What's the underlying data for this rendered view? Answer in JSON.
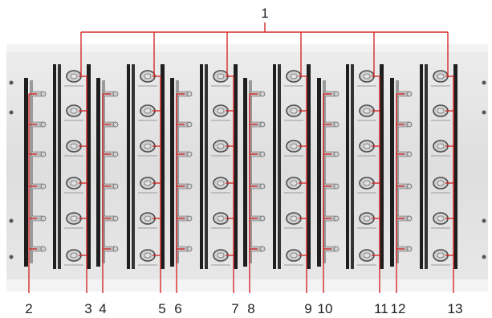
{
  "figure": {
    "top_callout": "1",
    "bottom_callouts": [
      "2",
      "3",
      "4",
      "5",
      "6",
      "7",
      "8",
      "9",
      "10",
      "11",
      "12",
      "13"
    ]
  },
  "colors": {
    "leader": "#d42a2a",
    "panel": "#e6e6e6",
    "panel_edge": "#f4f4f4",
    "slot_dark": "#1e1e1e",
    "metal": "#c8c8c8",
    "text": "#222222"
  }
}
